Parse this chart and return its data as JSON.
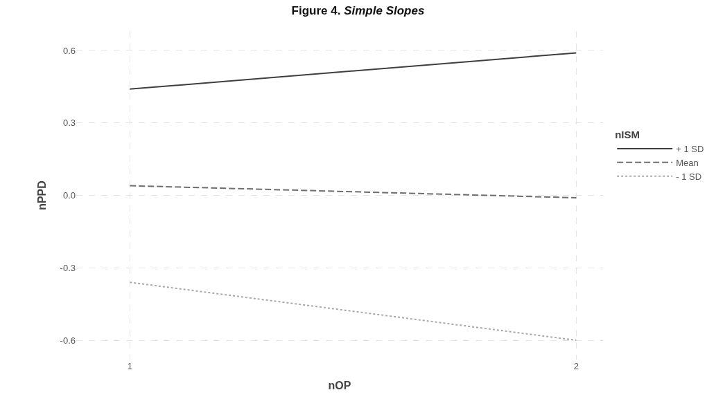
{
  "chart_data": {
    "type": "line",
    "title": "Figure 4. Simple Slopes",
    "xlabel": "nOP",
    "ylabel": "nPPD",
    "legend_title": "nISM",
    "x": [
      1,
      2
    ],
    "series": [
      {
        "name": "+ 1 SD",
        "color": "#3f3f3f",
        "line_style": "solid",
        "values": [
          0.44,
          0.59
        ]
      },
      {
        "name": "Mean",
        "color": "#6e6e6e",
        "line_style": "dashed",
        "values": [
          0.04,
          -0.01
        ]
      },
      {
        "name": "- 1 SD",
        "color": "#a8a8a8",
        "line_style": "dotted",
        "values": [
          -0.36,
          -0.6
        ]
      }
    ],
    "xlim": [
      0.88,
      2.06
    ],
    "xticks": [
      1,
      2
    ],
    "ylim": [
      -0.68,
      0.68
    ],
    "yticks": [
      {
        "value": -0.6,
        "label": "-0.6"
      },
      {
        "value": -0.3,
        "label": "-0.3"
      },
      {
        "value": 0,
        "label": "0.0"
      },
      {
        "value": 0.3,
        "label": "0.3"
      },
      {
        "value": 0.6,
        "label": "0.6"
      }
    ],
    "grid": true,
    "legend": "right",
    "marker": "none"
  }
}
